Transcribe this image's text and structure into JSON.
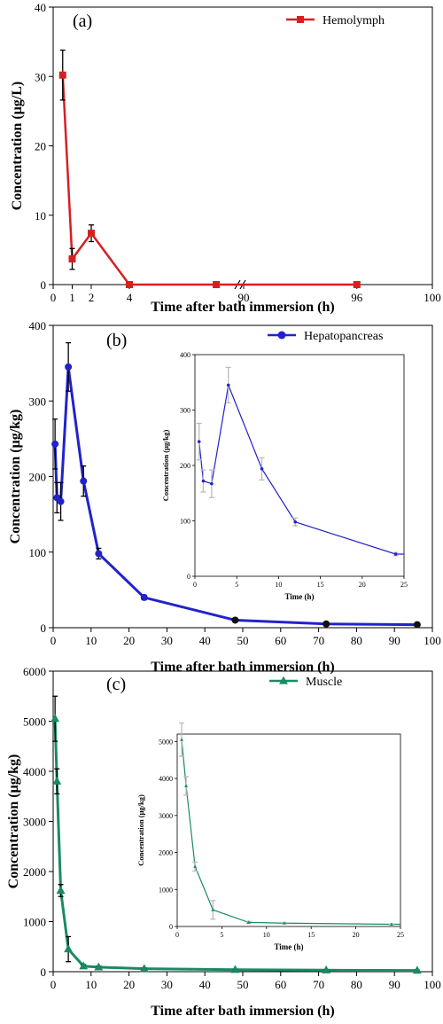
{
  "chart_data": [
    {
      "type": "line",
      "panel_label": "(a)",
      "xlabel": "Time after bath immersion (h)",
      "ylabel": "Concentration (μg/L)",
      "axis_break": true,
      "x_ticks_left": [
        "0",
        "1",
        "2",
        "4"
      ],
      "x_ticks_right": [
        "90",
        "96",
        "100"
      ],
      "y_ticks": [
        "0",
        "10",
        "20",
        "30",
        "40"
      ],
      "ylim": [
        0,
        40
      ],
      "legend": "top-right",
      "series": [
        {
          "name": "Hemolymph",
          "color": "#d62020",
          "marker": "square",
          "points": [
            {
              "x": 0.5,
              "y": 30.2,
              "err": 3.6
            },
            {
              "x": 1,
              "y": 3.7,
              "err": 1.5
            },
            {
              "x": 2,
              "y": 7.4,
              "err": 1.2
            },
            {
              "x": 4,
              "y": 0
            },
            {
              "x": 72,
              "y": 0
            },
            {
              "x": 96,
              "y": 0
            }
          ]
        }
      ]
    },
    {
      "type": "line",
      "panel_label": "(b)",
      "xlabel": "Time after bath immersion (h)",
      "ylabel": "Concentration (μg/kg)",
      "x_ticks": [
        "0",
        "10",
        "20",
        "30",
        "40",
        "50",
        "60",
        "70",
        "80",
        "90",
        "100"
      ],
      "y_ticks": [
        "0",
        "100",
        "200",
        "300",
        "400"
      ],
      "xlim": [
        0,
        100
      ],
      "ylim": [
        0,
        400
      ],
      "legend": "top-right",
      "series": [
        {
          "name": "Hepatopancreas",
          "color": "#2222cc",
          "marker": "circle",
          "points": [
            {
              "x": 0.5,
              "y": 243,
              "err": 33
            },
            {
              "x": 1,
              "y": 172,
              "err": 20
            },
            {
              "x": 2,
              "y": 167,
              "err": 25
            },
            {
              "x": 4,
              "y": 345,
              "err": 32
            },
            {
              "x": 8,
              "y": 194,
              "err": 20
            },
            {
              "x": 12,
              "y": 98,
              "err": 7
            },
            {
              "x": 24,
              "y": 40,
              "err": 3
            },
            {
              "x": 48,
              "y": 10,
              "err": 2
            },
            {
              "x": 72,
              "y": 5,
              "err": 1
            },
            {
              "x": 96,
              "y": 4,
              "err": 1
            }
          ]
        }
      ],
      "inset": {
        "xlabel": "Time (h)",
        "ylabel": "Concentration (μg/kg)",
        "x_ticks": [
          "0",
          "5",
          "10",
          "15",
          "20",
          "25"
        ],
        "y_ticks": [
          "0",
          "100",
          "200",
          "300",
          "400"
        ],
        "xlim": [
          0,
          25
        ],
        "ylim": [
          0,
          400
        ]
      }
    },
    {
      "type": "line",
      "panel_label": "(c)",
      "xlabel": "Time after bath immersion (h)",
      "ylabel": "Concentration (μg/kg)",
      "x_ticks": [
        "0",
        "10",
        "20",
        "30",
        "40",
        "50",
        "60",
        "70",
        "80",
        "90",
        "100"
      ],
      "y_ticks": [
        "0",
        "1000",
        "2000",
        "3000",
        "4000",
        "5000",
        "6000"
      ],
      "xlim": [
        0,
        100
      ],
      "ylim": [
        0,
        6000
      ],
      "legend": "top-right",
      "series": [
        {
          "name": "Muscle",
          "color": "#1a8a66",
          "marker": "triangle",
          "points": [
            {
              "x": 0.5,
              "y": 5050,
              "err": 450
            },
            {
              "x": 1,
              "y": 3800,
              "err": 250
            },
            {
              "x": 2,
              "y": 1620,
              "err": 120
            },
            {
              "x": 4,
              "y": 450,
              "err": 250
            },
            {
              "x": 8,
              "y": 110,
              "err": 30
            },
            {
              "x": 12,
              "y": 90,
              "err": 20
            },
            {
              "x": 24,
              "y": 60,
              "err": 10
            },
            {
              "x": 48,
              "y": 40,
              "err": 5
            },
            {
              "x": 72,
              "y": 30,
              "err": 5
            },
            {
              "x": 96,
              "y": 25,
              "err": 5
            }
          ]
        }
      ],
      "inset": {
        "xlabel": "Time (h)",
        "ylabel": "Concentration (μg/kg)",
        "x_ticks": [
          "0",
          "5",
          "10",
          "15",
          "20",
          "25"
        ],
        "y_ticks": [
          "0",
          "1000",
          "2000",
          "3000",
          "4000",
          "5000"
        ],
        "xlim": [
          0,
          25
        ],
        "ylim": [
          0,
          5200
        ]
      }
    }
  ]
}
